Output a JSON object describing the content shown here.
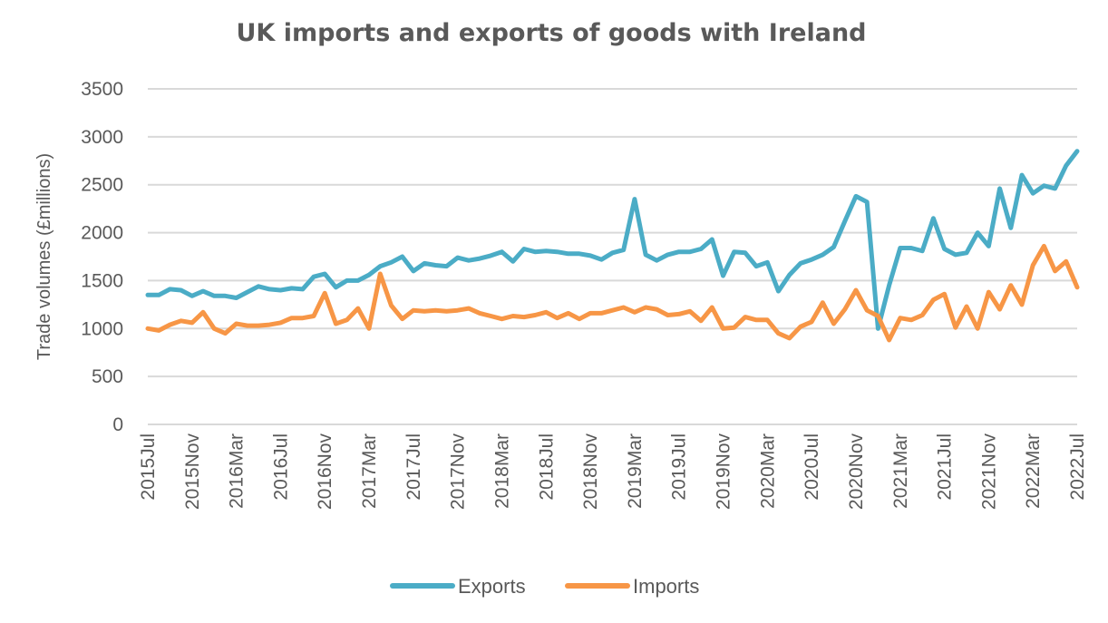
{
  "chart_data": {
    "type": "line",
    "title": "UK imports and exports of goods with Ireland",
    "xlabel": "",
    "ylabel": "Trade volumes (£millions)",
    "ylim": [
      0,
      3500
    ],
    "yticks": [
      0,
      500,
      1000,
      1500,
      2000,
      2500,
      3000,
      3500
    ],
    "grid": true,
    "legend_position": "bottom",
    "x": [
      "2015Jul",
      "2015Aug",
      "2015Sep",
      "2015Oct",
      "2015Nov",
      "2015Dec",
      "2016Jan",
      "2016Feb",
      "2016Mar",
      "2016Apr",
      "2016May",
      "2016Jun",
      "2016Jul",
      "2016Aug",
      "2016Sep",
      "2016Oct",
      "2016Nov",
      "2016Dec",
      "2017Jan",
      "2017Feb",
      "2017Mar",
      "2017Apr",
      "2017May",
      "2017Jun",
      "2017Jul",
      "2017Aug",
      "2017Sep",
      "2017Oct",
      "2017Nov",
      "2017Dec",
      "2018Jan",
      "2018Feb",
      "2018Mar",
      "2018Apr",
      "2018May",
      "2018Jun",
      "2018Jul",
      "2018Aug",
      "2018Sep",
      "2018Oct",
      "2018Nov",
      "2018Dec",
      "2019Jan",
      "2019Feb",
      "2019Mar",
      "2019Apr",
      "2019May",
      "2019Jun",
      "2019Jul",
      "2019Aug",
      "2019Sep",
      "2019Oct",
      "2019Nov",
      "2019Dec",
      "2020Jan",
      "2020Feb",
      "2020Mar",
      "2020Apr",
      "2020May",
      "2020Jun",
      "2020Jul",
      "2020Aug",
      "2020Sep",
      "2020Oct",
      "2020Nov",
      "2020Dec",
      "2021Jan",
      "2021Feb",
      "2021Mar",
      "2021Apr",
      "2021May",
      "2021Jun",
      "2021Jul",
      "2021Aug",
      "2021Sep",
      "2021Oct",
      "2021Nov",
      "2021Dec",
      "2022Jan",
      "2022Feb",
      "2022Mar",
      "2022Apr",
      "2022May",
      "2022Jun",
      "2022Jul"
    ],
    "tick_labels": [
      "2015Jul",
      "2015Nov",
      "2016Mar",
      "2016Jul",
      "2016Nov",
      "2017Mar",
      "2017Jul",
      "2017Nov",
      "2018Mar",
      "2018Jul",
      "2018Nov",
      "2019Mar",
      "2019Jul",
      "2019Nov",
      "2020Mar",
      "2020Jul",
      "2020Nov",
      "2021Mar",
      "2021Jul",
      "2021Nov",
      "2022Mar",
      "2022Jul"
    ],
    "series": [
      {
        "name": "Exports",
        "color": "#4BACC6",
        "values": [
          1350,
          1350,
          1410,
          1400,
          1340,
          1390,
          1340,
          1340,
          1320,
          1380,
          1440,
          1410,
          1400,
          1420,
          1410,
          1540,
          1570,
          1430,
          1500,
          1500,
          1560,
          1650,
          1690,
          1750,
          1600,
          1680,
          1660,
          1650,
          1740,
          1710,
          1730,
          1760,
          1800,
          1700,
          1830,
          1800,
          1810,
          1800,
          1780,
          1780,
          1760,
          1720,
          1790,
          1820,
          2350,
          1770,
          1710,
          1770,
          1800,
          1800,
          1830,
          1930,
          1550,
          1800,
          1790,
          1650,
          1690,
          1390,
          1560,
          1680,
          1720,
          1770,
          1850,
          2120,
          2380,
          2320,
          1000,
          1450,
          1840,
          1840,
          1810,
          2150,
          1830,
          1770,
          1790,
          2000,
          1860,
          2460,
          2050,
          2600,
          2410,
          2490,
          2460,
          2700,
          2850
        ]
      },
      {
        "name": "Imports",
        "color": "#F79646",
        "values": [
          1000,
          980,
          1040,
          1080,
          1060,
          1170,
          1000,
          950,
          1050,
          1030,
          1030,
          1040,
          1060,
          1110,
          1110,
          1130,
          1370,
          1050,
          1090,
          1210,
          1000,
          1570,
          1240,
          1100,
          1190,
          1180,
          1190,
          1180,
          1190,
          1210,
          1160,
          1130,
          1100,
          1130,
          1120,
          1140,
          1170,
          1110,
          1160,
          1100,
          1160,
          1160,
          1190,
          1220,
          1170,
          1220,
          1200,
          1140,
          1150,
          1180,
          1080,
          1220,
          1000,
          1010,
          1120,
          1090,
          1090,
          950,
          900,
          1020,
          1070,
          1270,
          1050,
          1200,
          1400,
          1190,
          1130,
          880,
          1110,
          1090,
          1140,
          1300,
          1360,
          1010,
          1230,
          1000,
          1380,
          1200,
          1450,
          1250,
          1660,
          1860,
          1600,
          1700,
          1430
        ]
      }
    ]
  }
}
